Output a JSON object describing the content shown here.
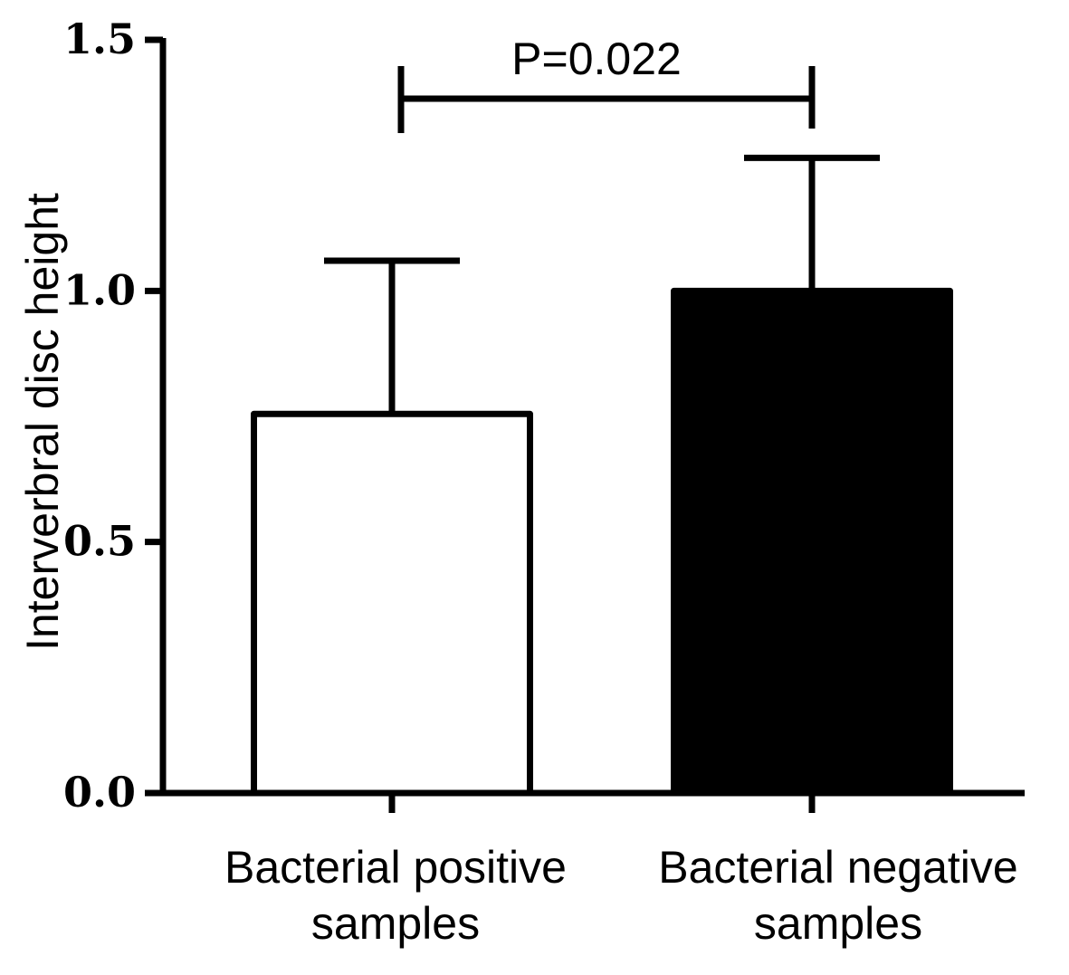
{
  "chart_data": {
    "type": "bar",
    "categories": [
      [
        "Bacterial positive",
        "samples"
      ],
      [
        "Bacterial negative",
        "samples"
      ]
    ],
    "values": [
      0.755,
      1.0
    ],
    "error_upper": [
      1.06,
      1.265
    ],
    "bar_fill": [
      "#ffffff",
      "#000000"
    ],
    "ylabel": "Interverbral disc height",
    "ylim": [
      0,
      1.5
    ],
    "yticks": [
      0.0,
      0.5,
      1.0,
      1.5
    ],
    "ytick_labels": [
      "0.0",
      "0.5",
      "1.0",
      "1.5"
    ],
    "significance": {
      "between": [
        0,
        1
      ],
      "label": "P=0.022"
    },
    "grid": false,
    "legend": "none"
  }
}
